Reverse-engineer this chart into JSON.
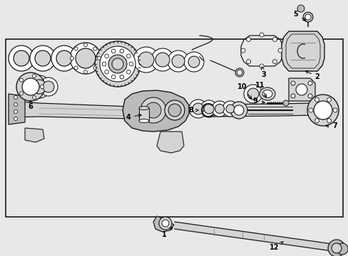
{
  "fig_width": 4.89,
  "fig_height": 3.6,
  "dpi": 100,
  "bg_color": "#e8e8e8",
  "box_bg": "#e8e8e8",
  "line_color": "#1a1a1a",
  "fill_light": "#d4d4d4",
  "fill_mid": "#bbbbbb",
  "fill_dark": "#999999"
}
